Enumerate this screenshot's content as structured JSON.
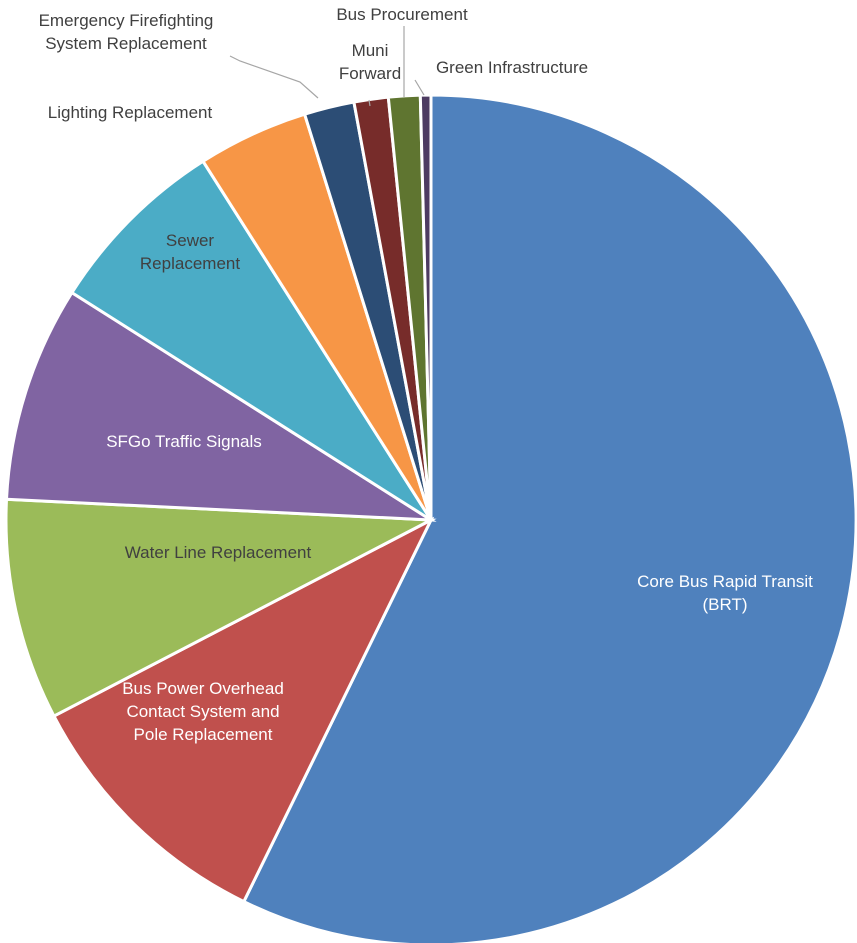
{
  "chart_data": {
    "type": "pie",
    "title": "",
    "slices": [
      {
        "label": [
          "Core Bus Rapid Transit",
          "(BRT)"
        ],
        "value": 57.2,
        "color": "#4f81bd",
        "text_color": "#ffffff"
      },
      {
        "label": [
          "Bus Power Overhead",
          "Contact System and",
          "Pole Replacement"
        ],
        "value": 10.1,
        "color": "#c0504d",
        "text_color": "#ffffff"
      },
      {
        "label": [
          "Water Line Replacement"
        ],
        "value": 8.4,
        "color": "#9bbb59",
        "text_color": "#404040"
      },
      {
        "label": [
          "SFGo Traffic Signals"
        ],
        "value": 8.2,
        "color": "#8064a2",
        "text_color": "#ffffff"
      },
      {
        "label": [
          "Sewer",
          "Replacement"
        ],
        "value": 7.0,
        "color": "#4bacc6",
        "text_color": "#404040"
      },
      {
        "label": [
          "Lighting Replacement"
        ],
        "value": 4.2,
        "color": "#f79646",
        "text_color": "#404040"
      },
      {
        "label": [
          "Emergency Firefighting",
          "System Replacement"
        ],
        "value": 1.9,
        "color": "#2c4d75",
        "text_color": "#404040"
      },
      {
        "label": [
          "Muni",
          "Forward"
        ],
        "value": 1.3,
        "color": "#772c2a",
        "text_color": "#404040"
      },
      {
        "label": [
          "Bus Procurement"
        ],
        "value": 1.2,
        "color": "#5f7530",
        "text_color": "#404040"
      },
      {
        "label": [
          "Green Infrastructure"
        ],
        "value": 0.4,
        "color": "#4d3b62",
        "text_color": "#404040"
      }
    ]
  }
}
